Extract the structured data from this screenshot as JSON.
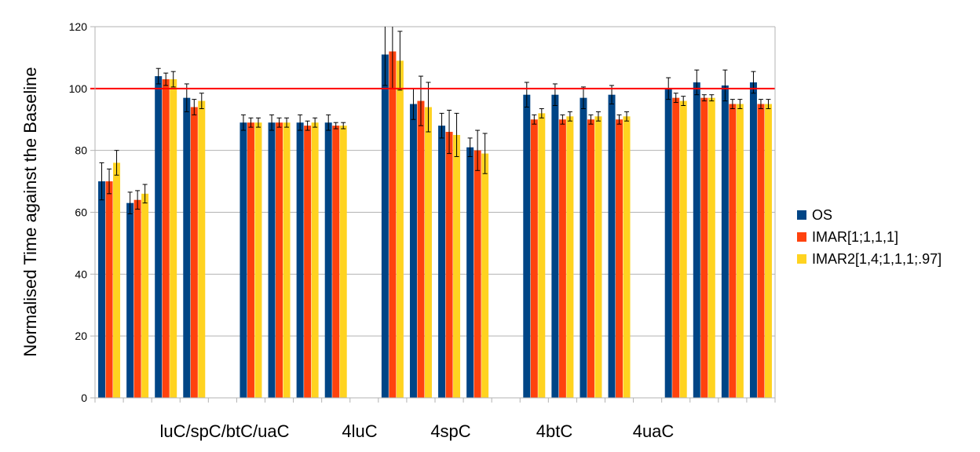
{
  "chart_data": {
    "type": "bar",
    "title": "",
    "ylabel": "Normalised Time against the Baseline",
    "xlabel": "",
    "ylim": [
      0,
      120
    ],
    "yticks": [
      0,
      20,
      40,
      60,
      80,
      100,
      120
    ],
    "grid": true,
    "legend_position": "right",
    "reference_line": {
      "value": 100,
      "color": "#ff0000"
    },
    "category_labels": [
      "luC/spC/btC/uaC",
      "4luC",
      "4spC",
      "4btC",
      "4uaC"
    ],
    "series": [
      {
        "name": "OS",
        "color": "#004586",
        "values": [
          70,
          63,
          104,
          97,
          null,
          89,
          89,
          89,
          89,
          null,
          111,
          95,
          88,
          81,
          null,
          98,
          98,
          97,
          98,
          null,
          100,
          102,
          101,
          102
        ],
        "errors": [
          6,
          3.5,
          2.5,
          4.5,
          null,
          2.5,
          2.5,
          2.5,
          2.5,
          null,
          10,
          5,
          4,
          3,
          null,
          4,
          3.5,
          3.5,
          3,
          null,
          3.5,
          4,
          5,
          3.5
        ]
      },
      {
        "name": "IMAR[1;1,1,1]",
        "color": "#ff420e",
        "values": [
          70,
          64,
          103,
          94,
          null,
          89,
          89,
          88,
          88,
          null,
          112,
          96,
          86,
          80,
          null,
          90,
          90,
          90,
          90,
          null,
          97,
          97,
          95,
          95
        ],
        "errors": [
          4,
          3,
          2,
          2.5,
          null,
          1.5,
          1.5,
          1.5,
          1,
          null,
          12,
          8,
          7,
          6.5,
          null,
          1.5,
          1.5,
          1.5,
          1.5,
          null,
          1.5,
          1,
          1.5,
          1.5
        ]
      },
      {
        "name": "IMAR2[1,4;1,1,1;.97]",
        "color": "#ffd320",
        "values": [
          76,
          66,
          103,
          96,
          null,
          89,
          89,
          89,
          88,
          null,
          109,
          94,
          85,
          79,
          null,
          92,
          91,
          91,
          91,
          null,
          96,
          97,
          95,
          95
        ],
        "errors": [
          4,
          3,
          2.5,
          2.5,
          null,
          1.5,
          1.5,
          1.5,
          1,
          null,
          9.5,
          8,
          7,
          6.5,
          null,
          1.5,
          1.5,
          1.5,
          1.5,
          null,
          1.5,
          1,
          1.5,
          1.5
        ]
      }
    ]
  }
}
